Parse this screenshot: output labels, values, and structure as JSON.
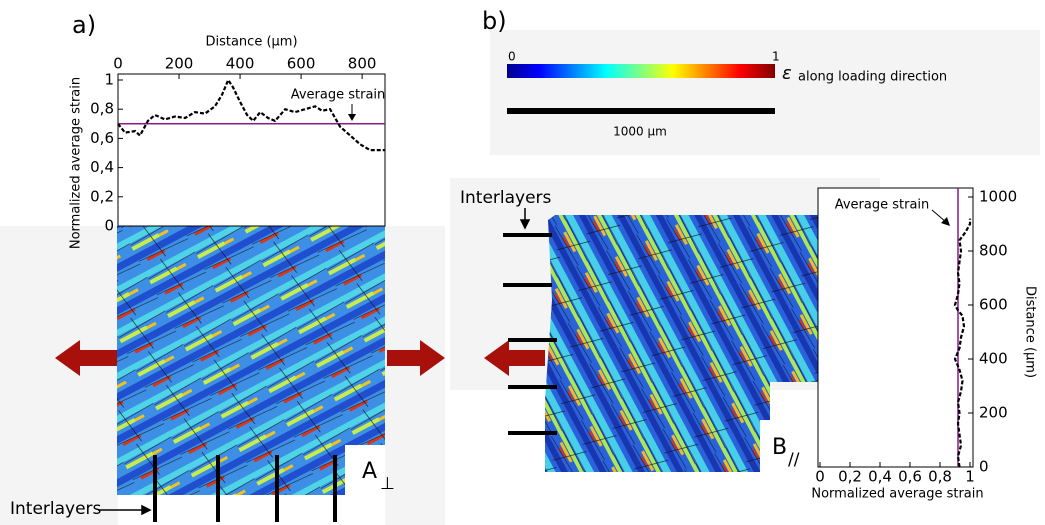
{
  "panel_labels": [
    "a)",
    "b)"
  ],
  "colorbar": {
    "min_label": "0",
    "max_label": "1",
    "symbol": "ε",
    "label": "along loading direction"
  },
  "scale_bar": "1000 µm",
  "interlayers": [
    "Interlayers",
    "Interlayers"
  ],
  "map_labels": [
    {
      "letter": "A",
      "sub": "⊥"
    },
    {
      "letter": "B",
      "sub": "//"
    }
  ],
  "chart_data": [
    {
      "type": "line",
      "orientation": "horizontal",
      "x_label": "Distance (µm)",
      "y_label": "Normalized average strain",
      "x": [
        0,
        23,
        56,
        72,
        98,
        121,
        154,
        187,
        220,
        252,
        285,
        318,
        341,
        361,
        377,
        400,
        423,
        443,
        466,
        492,
        515,
        548,
        580,
        613,
        646,
        669,
        695,
        728,
        761,
        793,
        826,
        875
      ],
      "values": [
        0.7,
        0.64,
        0.65,
        0.62,
        0.72,
        0.76,
        0.73,
        0.75,
        0.74,
        0.78,
        0.77,
        0.82,
        0.9,
        1.0,
        0.95,
        0.85,
        0.76,
        0.72,
        0.78,
        0.74,
        0.72,
        0.8,
        0.78,
        0.8,
        0.82,
        0.79,
        0.8,
        0.68,
        0.62,
        0.56,
        0.52,
        0.52
      ],
      "color": "#000000",
      "average": 0.7,
      "average_color": "#8b1a8b",
      "annotation": "Average strain",
      "xlim": [
        0,
        875
      ],
      "xticks": [
        0,
        200,
        400,
        600,
        800
      ],
      "ylim": [
        0,
        1
      ],
      "yticks": [
        0,
        {
          "value": 0.2,
          "label": "0,2"
        },
        {
          "value": 0.4,
          "label": "0,4"
        },
        {
          "value": 0.6,
          "label": "0,6"
        },
        {
          "value": 0.8,
          "label": "0,8"
        },
        1
      ]
    },
    {
      "type": "line",
      "orientation": "vertical",
      "x_label": "Distance (µm)",
      "y_label": "Normalized average strain",
      "x": [
        0,
        40,
        80,
        120,
        160,
        200,
        240,
        280,
        320,
        360,
        400,
        440,
        480,
        520,
        560,
        580,
        600,
        640,
        680,
        720,
        760,
        800,
        840,
        870,
        900,
        920
      ],
      "values": [
        0.93,
        0.92,
        0.94,
        0.93,
        0.92,
        0.93,
        0.92,
        0.94,
        0.95,
        0.93,
        0.9,
        0.93,
        0.94,
        0.96,
        0.95,
        0.92,
        0.9,
        0.92,
        0.93,
        0.92,
        0.93,
        0.94,
        0.93,
        0.97,
        1.0,
        1.0
      ],
      "color": "#000000",
      "average": 0.92,
      "average_color": "#8b1a8b",
      "annotation": "Average strain",
      "xlim": [
        0,
        1000
      ],
      "xticks": [
        0,
        200,
        400,
        600,
        800,
        1000
      ],
      "ylim": [
        0,
        1
      ],
      "yticks": [
        0,
        {
          "value": 0.2,
          "label": "0,2"
        },
        {
          "value": 0.4,
          "label": "0,4"
        },
        {
          "value": 0.6,
          "label": "0,6"
        },
        {
          "value": 0.8,
          "label": "0,8"
        },
        1
      ]
    }
  ]
}
